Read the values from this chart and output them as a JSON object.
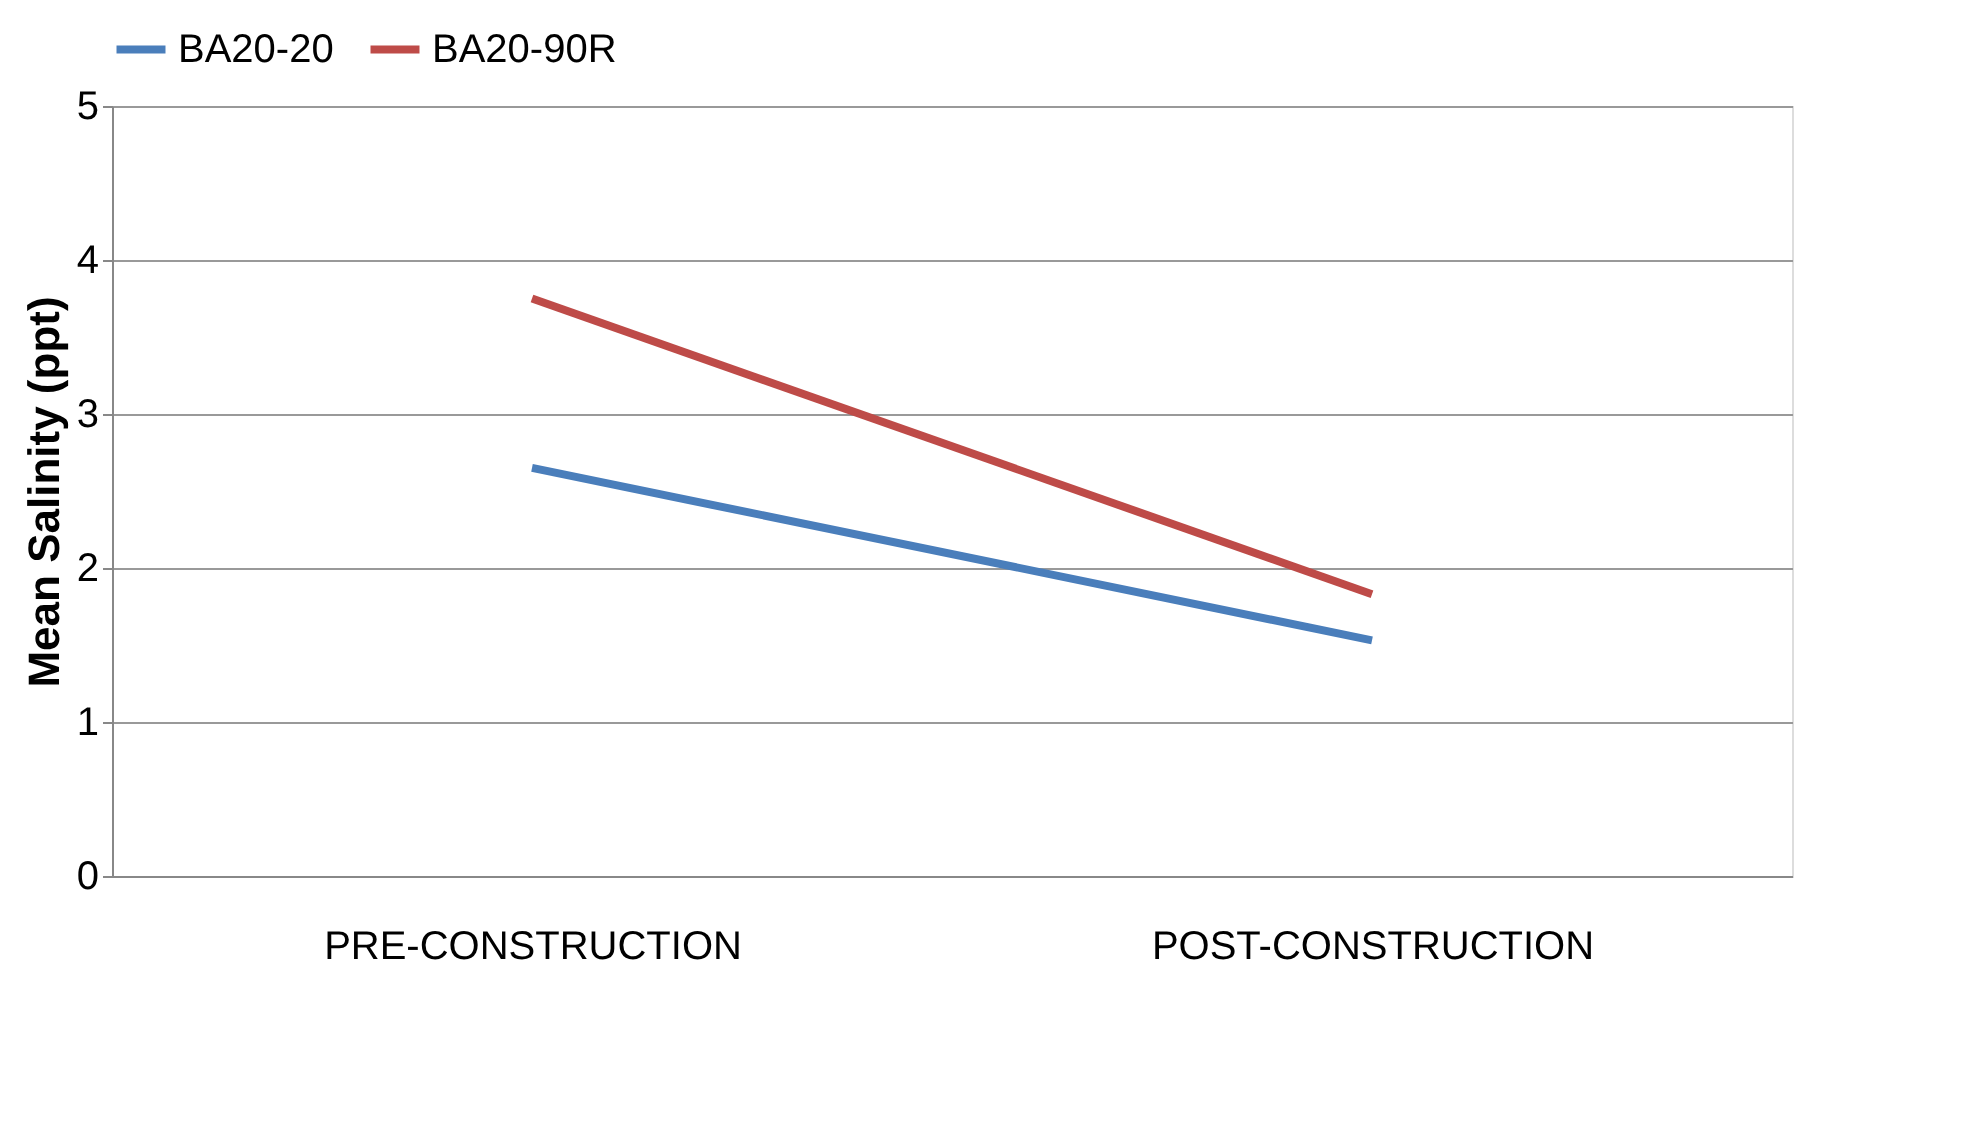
{
  "chart_data": {
    "type": "line",
    "ylabel": "Mean Salinity (ppt)",
    "categories": [
      "PRE-CONSTRUCTION",
      "POST-CONSTRUCTION"
    ],
    "series": [
      {
        "name": "BA20-20",
        "color": "#4a7ebb",
        "values": [
          2.65,
          1.53
        ]
      },
      {
        "name": "BA20-90R",
        "color": "#be4b48",
        "values": [
          3.75,
          1.83
        ]
      }
    ],
    "ylim": [
      0,
      5
    ],
    "yticks": [
      0,
      1,
      2,
      3,
      4,
      5
    ],
    "grid": "y",
    "legend": "top",
    "marker": "none",
    "line_style": "solid"
  }
}
